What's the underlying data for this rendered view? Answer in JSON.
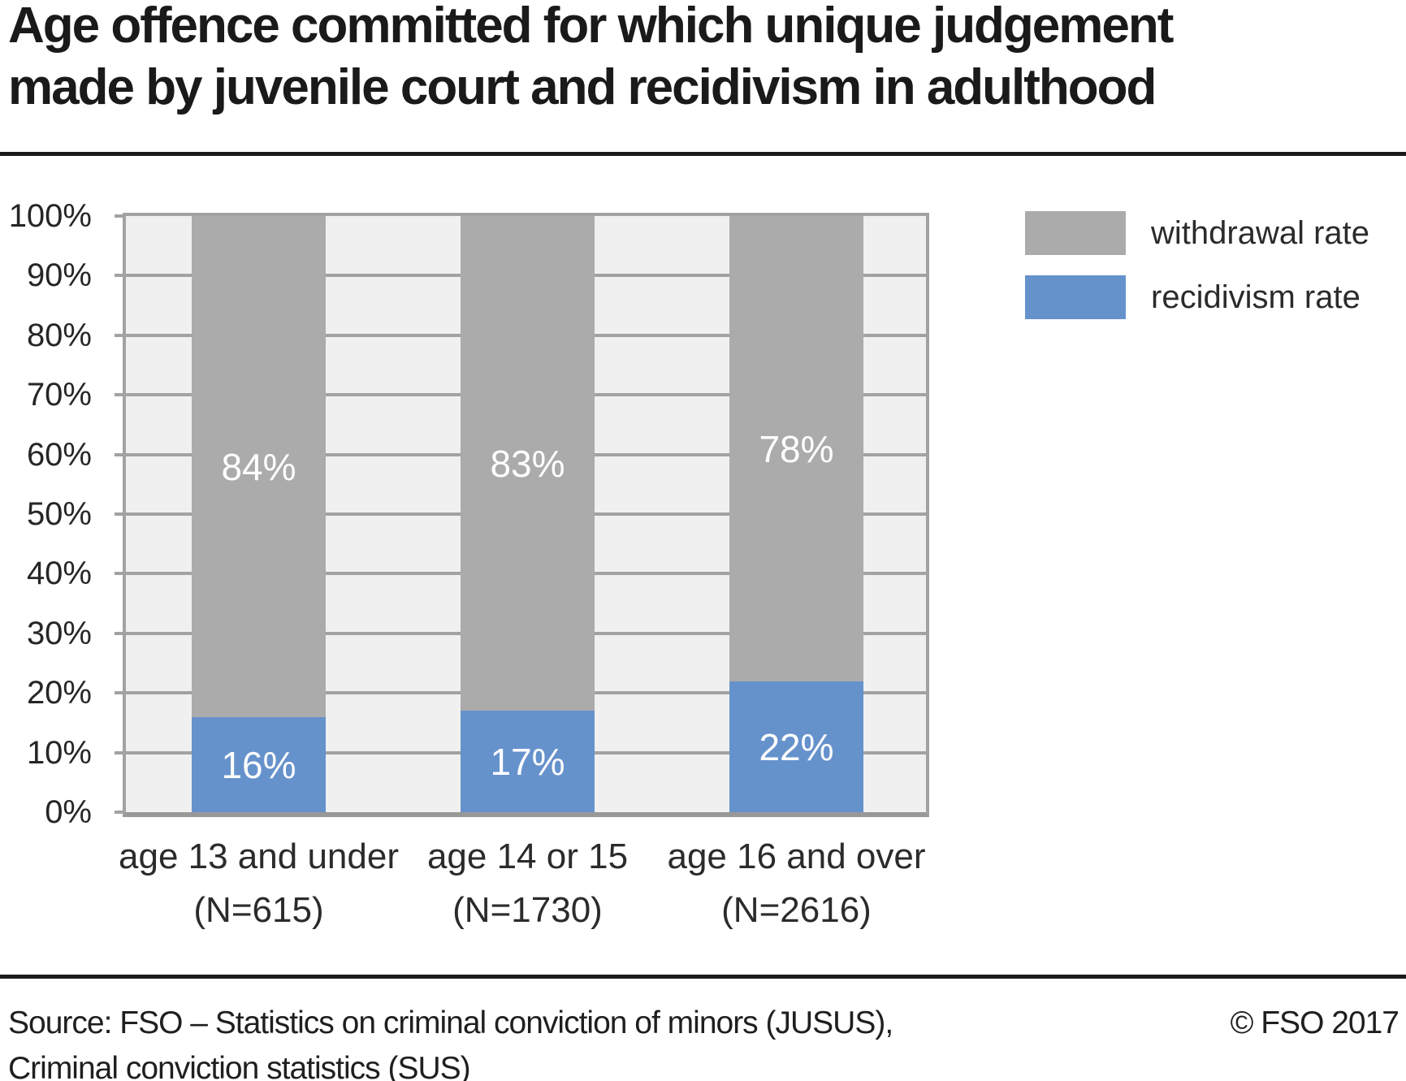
{
  "header": {
    "title": "Age offence committed for which unique judgement made by juvenile court and recidivism in adulthood"
  },
  "legend": {
    "items": [
      {
        "label": "withdrawal rate",
        "color": "#ababab"
      },
      {
        "label": "recidivism rate",
        "color": "#6692cc"
      }
    ]
  },
  "chart_data": {
    "type": "bar",
    "stacked": true,
    "title": "Age offence committed for which unique judgement made by juvenile court and recidivism in adulthood",
    "categories": [
      {
        "label": "age 13 and under",
        "n": "(N=615)"
      },
      {
        "label": "age 14 or 15",
        "n": "(N=1730)"
      },
      {
        "label": "age 16 and over",
        "n": "(N=2616)"
      }
    ],
    "series": [
      {
        "name": "recidivism rate",
        "color": "#6692cc",
        "values": [
          16,
          17,
          22
        ]
      },
      {
        "name": "withdrawal rate",
        "color": "#ababab",
        "values": [
          84,
          83,
          78
        ]
      }
    ],
    "value_suffix": "%",
    "ylim": [
      0,
      100
    ],
    "ytick_step": 10,
    "ytick_labels": [
      "0%",
      "10%",
      "20%",
      "30%",
      "40%",
      "50%",
      "60%",
      "70%",
      "80%",
      "90%",
      "100%"
    ],
    "grid": "horizontal",
    "legend_position": "top-right"
  },
  "footer": {
    "source_line1": "Source: FSO – Statistics on criminal conviction of minors (JUSUS),",
    "source_line2": "Criminal conviction statistics (SUS)",
    "copyright": "© FSO 2017"
  }
}
